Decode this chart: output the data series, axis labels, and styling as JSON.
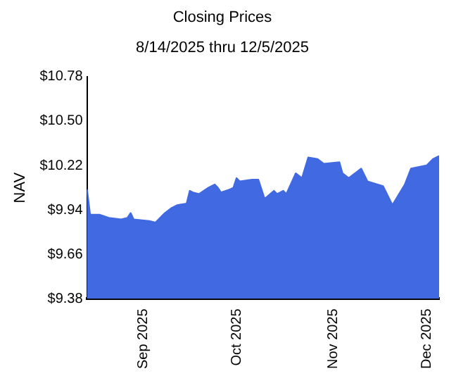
{
  "chart_data": {
    "type": "area",
    "title": "Closing Prices",
    "subtitle": "8/14/2025 thru 12/5/2025",
    "ylabel": "NAV",
    "x": [
      "2025-08-14",
      "2025-08-15",
      "2025-08-18",
      "2025-08-21",
      "2025-08-25",
      "2025-08-27",
      "2025-08-28",
      "2025-08-29",
      "2025-09-03",
      "2025-09-05",
      "2025-09-08",
      "2025-09-10",
      "2025-09-12",
      "2025-09-15",
      "2025-09-16",
      "2025-09-17",
      "2025-09-19",
      "2025-09-22",
      "2025-09-24",
      "2025-09-25",
      "2025-09-26",
      "2025-09-29",
      "2025-09-30",
      "2025-10-01",
      "2025-10-02",
      "2025-10-06",
      "2025-10-08",
      "2025-10-10",
      "2025-10-13",
      "2025-10-14",
      "2025-10-16",
      "2025-10-17",
      "2025-10-20",
      "2025-10-22",
      "2025-10-24",
      "2025-10-27",
      "2025-10-29",
      "2025-11-03",
      "2025-11-04",
      "2025-11-06",
      "2025-11-10",
      "2025-11-12",
      "2025-11-17",
      "2025-11-18",
      "2025-11-20",
      "2025-11-24",
      "2025-11-26",
      "2025-12-01",
      "2025-12-03",
      "2025-12-05"
    ],
    "series": [
      {
        "color": "#4169e1",
        "values": [
          10.07,
          9.91,
          9.91,
          9.89,
          9.88,
          9.89,
          9.92,
          9.88,
          9.87,
          9.86,
          9.92,
          9.95,
          9.97,
          9.98,
          10.06,
          10.05,
          10.04,
          10.08,
          10.1,
          10.08,
          10.05,
          10.07,
          10.08,
          10.14,
          10.12,
          10.13,
          10.13,
          10.01,
          10.06,
          10.04,
          10.06,
          10.04,
          10.17,
          10.14,
          10.27,
          10.26,
          10.23,
          10.24,
          10.17,
          10.14,
          10.2,
          10.12,
          10.09,
          10.05,
          9.97,
          10.1,
          10.2,
          10.22,
          10.26,
          10.28
        ]
      }
    ],
    "xlim": [
      "2025-08-14",
      "2025-12-05"
    ],
    "xticks": [
      {
        "value": "2025-09-01",
        "label": "Sep 2025"
      },
      {
        "value": "2025-10-01",
        "label": "Oct 2025"
      },
      {
        "value": "2025-11-01",
        "label": "Nov 2025"
      },
      {
        "value": "2025-12-01",
        "label": "Dec 2025"
      }
    ],
    "ylim": [
      9.38,
      10.78
    ],
    "yticks": [
      {
        "value": 9.38,
        "label": "$9.38"
      },
      {
        "value": 9.66,
        "label": "$9.66"
      },
      {
        "value": 9.94,
        "label": "$9.94"
      },
      {
        "value": 10.22,
        "label": "$10.22"
      },
      {
        "value": 10.5,
        "label": "$10.50"
      },
      {
        "value": 10.78,
        "label": "$10.78"
      }
    ],
    "grid": false,
    "legend": false,
    "marker": "none"
  }
}
